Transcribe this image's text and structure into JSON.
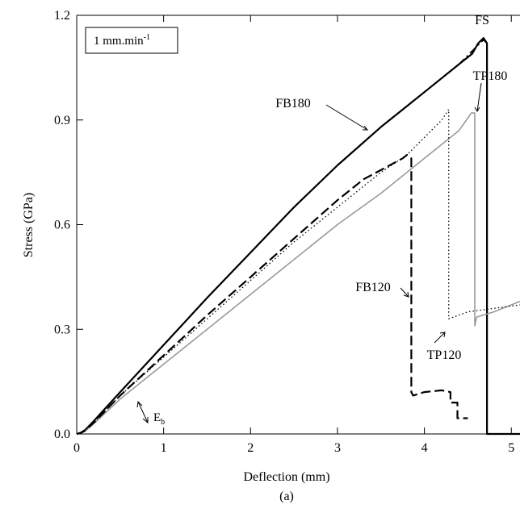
{
  "chart_data": {
    "type": "line",
    "title": "",
    "xlabel": "Deflection (mm)",
    "ylabel": "Stress (GPa)",
    "caption": "(a)",
    "xlim": [
      0,
      5.1
    ],
    "ylim": [
      0,
      1.2
    ],
    "xticks": [
      0,
      1,
      2,
      3,
      4,
      5
    ],
    "yticks": [
      "0.0",
      "0.3",
      "0.6",
      "0.9",
      "1.2"
    ],
    "grid": false,
    "legend": {
      "text": "1 mm.min",
      "superscript": "-1",
      "placement": "top-left"
    },
    "series": [
      {
        "name": "FS",
        "color": "#000000",
        "dash": "dash-dot",
        "x": [
          0.0,
          0.05,
          0.1,
          0.2,
          0.5,
          1.0,
          1.5,
          2.0,
          2.5,
          3.0,
          3.5,
          4.0,
          4.4,
          4.6,
          4.68,
          4.72,
          4.72,
          4.76,
          5.1
        ],
        "y": [
          0.0,
          0.004,
          0.012,
          0.038,
          0.12,
          0.255,
          0.39,
          0.52,
          0.65,
          0.77,
          0.88,
          0.98,
          1.06,
          1.11,
          1.13,
          1.12,
          0.0,
          0.0,
          0.0
        ]
      },
      {
        "name": "FB180",
        "color": "#000000",
        "dash": "solid",
        "x": [
          0.0,
          0.05,
          0.1,
          0.2,
          0.5,
          1.0,
          1.5,
          2.0,
          2.5,
          3.0,
          3.5,
          4.0,
          4.4,
          4.55,
          4.62,
          4.68,
          4.72,
          4.72,
          4.76,
          5.1
        ],
        "y": [
          0.0,
          0.004,
          0.012,
          0.038,
          0.12,
          0.255,
          0.39,
          0.52,
          0.65,
          0.77,
          0.88,
          0.98,
          1.06,
          1.09,
          1.12,
          1.135,
          1.12,
          0.0,
          0.0,
          0.0
        ]
      },
      {
        "name": "TP180",
        "color": "#999999",
        "dash": "solid",
        "x": [
          0.0,
          0.05,
          0.1,
          0.2,
          0.5,
          1.0,
          1.5,
          2.0,
          2.5,
          3.0,
          3.5,
          4.0,
          4.4,
          4.54,
          4.58,
          4.58,
          4.6,
          4.8,
          5.1
        ],
        "y": [
          0.0,
          0.003,
          0.009,
          0.03,
          0.1,
          0.2,
          0.3,
          0.4,
          0.5,
          0.6,
          0.69,
          0.79,
          0.87,
          0.92,
          0.92,
          0.31,
          0.335,
          0.35,
          0.38
        ]
      },
      {
        "name": "TP120",
        "color": "#000000",
        "dash": "dotted",
        "x": [
          0.0,
          0.05,
          0.1,
          0.2,
          0.5,
          1.0,
          1.5,
          2.0,
          2.5,
          3.0,
          3.5,
          3.8,
          4.0,
          4.2,
          4.28,
          4.28,
          4.5,
          4.8,
          5.1
        ],
        "y": [
          0.0,
          0.003,
          0.01,
          0.033,
          0.11,
          0.22,
          0.33,
          0.44,
          0.55,
          0.65,
          0.75,
          0.8,
          0.85,
          0.9,
          0.93,
          0.33,
          0.35,
          0.36,
          0.37
        ]
      },
      {
        "name": "FB120",
        "color": "#000000",
        "dash": "long-dash",
        "x": [
          0.0,
          0.05,
          0.1,
          0.2,
          0.5,
          1.0,
          1.5,
          2.0,
          2.5,
          3.0,
          3.3,
          3.6,
          3.75,
          3.8,
          3.85,
          3.85,
          3.87,
          4.0,
          4.2,
          4.3,
          4.3,
          4.38,
          4.38,
          4.5
        ],
        "y": [
          0.0,
          0.003,
          0.01,
          0.033,
          0.11,
          0.225,
          0.34,
          0.45,
          0.56,
          0.67,
          0.73,
          0.77,
          0.79,
          0.8,
          0.79,
          0.12,
          0.11,
          0.12,
          0.125,
          0.12,
          0.09,
          0.09,
          0.045,
          0.045
        ]
      }
    ],
    "annotations": [
      {
        "name": "FS-label",
        "text": "FS"
      },
      {
        "name": "FB180-label",
        "text": "FB180"
      },
      {
        "name": "TP180-label",
        "text": "TP180"
      },
      {
        "name": "FB120-label",
        "text": "FB120"
      },
      {
        "name": "TP120-label",
        "text": "TP120"
      },
      {
        "name": "Eb-label",
        "text": "E",
        "subscript": "b"
      }
    ]
  }
}
